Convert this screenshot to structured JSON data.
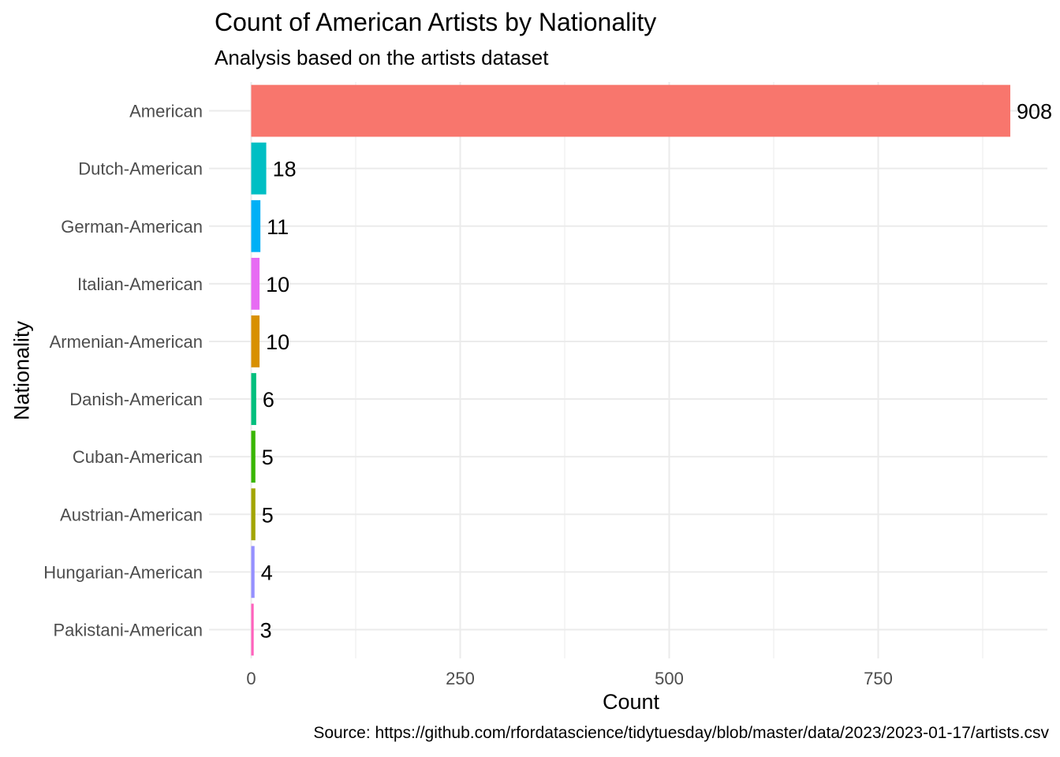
{
  "chart_data": {
    "type": "bar",
    "orientation": "horizontal",
    "title": "Count of American Artists by Nationality",
    "subtitle": "Analysis based on the artists dataset",
    "caption": "Source: https://github.com/rfordatascience/tidytuesday/blob/master/data/2023/2023-01-17/artists.csv",
    "xlabel": "Count",
    "ylabel": "Nationality",
    "xlim": [
      0,
      930
    ],
    "xticks": [
      0,
      250,
      500,
      750
    ],
    "grid": true,
    "legend": "none",
    "categories": [
      "American",
      "Dutch-American",
      "German-American",
      "Italian-American",
      "Armenian-American",
      "Danish-American",
      "Cuban-American",
      "Austrian-American",
      "Hungarian-American",
      "Pakistani-American"
    ],
    "values": [
      908,
      18,
      11,
      10,
      10,
      6,
      5,
      5,
      4,
      3
    ],
    "colors": [
      "#F8766D",
      "#00BFC4",
      "#00B0F6",
      "#E76BF3",
      "#D89000",
      "#00BF7D",
      "#39B600",
      "#A3A500",
      "#9590FF",
      "#FF62BC"
    ]
  }
}
